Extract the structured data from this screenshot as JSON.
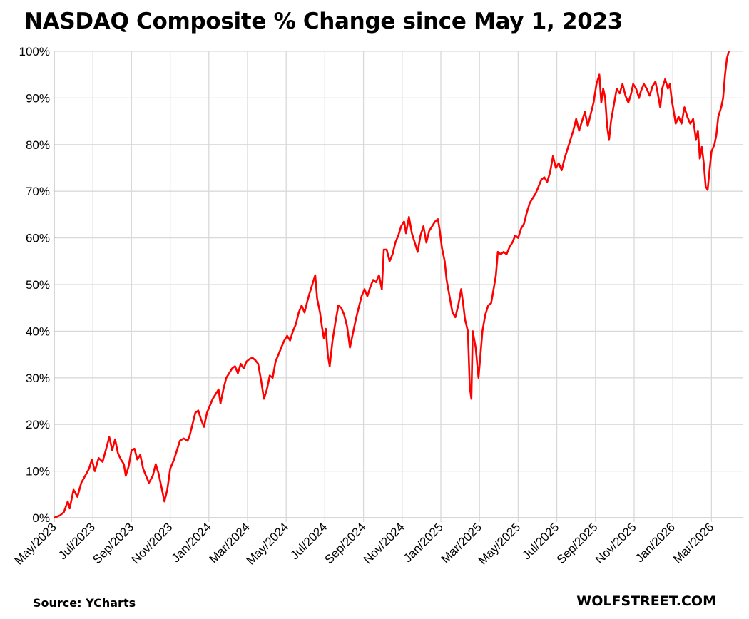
{
  "chart_data": {
    "type": "line",
    "title": "NASDAQ Composite % Change since May 1, 2023",
    "source": "Source: YCharts",
    "credit": "WOLFSTREET.COM",
    "ylim": [
      0,
      100
    ],
    "y_ticks": [
      "0%",
      "10%",
      "20%",
      "30%",
      "40%",
      "50%",
      "60%",
      "70%",
      "80%",
      "90%",
      "100%"
    ],
    "x_ticks": [
      "May/2023",
      "Jul/2023",
      "Sep/2023",
      "Nov/2023",
      "Jan/2024",
      "Mar/2024",
      "May/2024",
      "Jul/2024",
      "Sep/2024",
      "Nov/2024",
      "Jan/2025",
      "Mar/2025",
      "May/2025",
      "Jul/2025",
      "Sep/2025",
      "Nov/2025",
      "Jan/2026",
      "Mar/2026"
    ],
    "x_unit": "months since May 1, 2023",
    "xlim": [
      0,
      35.1
    ],
    "grid": true,
    "color": "#ff0000",
    "series": [
      {
        "values": [
          [
            0,
            0
          ],
          [
            0.3,
            0.5
          ],
          [
            0.5,
            1.2
          ],
          [
            0.7,
            3.5
          ],
          [
            0.8,
            2
          ],
          [
            1.0,
            6
          ],
          [
            1.2,
            4.5
          ],
          [
            1.4,
            7.5
          ],
          [
            1.6,
            9
          ],
          [
            1.8,
            10.5
          ],
          [
            1.95,
            12.5
          ],
          [
            2.1,
            10
          ],
          [
            2.3,
            12.8
          ],
          [
            2.5,
            12
          ],
          [
            2.7,
            15
          ],
          [
            2.85,
            17.3
          ],
          [
            3.0,
            14.5
          ],
          [
            3.15,
            16.8
          ],
          [
            3.3,
            13.8
          ],
          [
            3.45,
            12.5
          ],
          [
            3.6,
            11.5
          ],
          [
            3.7,
            9
          ],
          [
            3.85,
            11
          ],
          [
            4.0,
            14.5
          ],
          [
            4.15,
            14.8
          ],
          [
            4.3,
            12.5
          ],
          [
            4.45,
            13.5
          ],
          [
            4.6,
            10.5
          ],
          [
            4.75,
            9
          ],
          [
            4.9,
            7.5
          ],
          [
            5.1,
            9
          ],
          [
            5.25,
            11.5
          ],
          [
            5.4,
            9.5
          ],
          [
            5.55,
            6.5
          ],
          [
            5.7,
            3.5
          ],
          [
            5.85,
            6
          ],
          [
            6.0,
            10.5
          ],
          [
            6.2,
            12.5
          ],
          [
            6.35,
            14.5
          ],
          [
            6.5,
            16.5
          ],
          [
            6.7,
            17
          ],
          [
            6.9,
            16.5
          ],
          [
            7.0,
            17.5
          ],
          [
            7.15,
            20
          ],
          [
            7.3,
            22.5
          ],
          [
            7.45,
            23
          ],
          [
            7.6,
            21
          ],
          [
            7.75,
            19.5
          ],
          [
            7.9,
            22.5
          ],
          [
            8.05,
            24
          ],
          [
            8.2,
            25.5
          ],
          [
            8.35,
            26.5
          ],
          [
            8.5,
            27.5
          ],
          [
            8.6,
            24.5
          ],
          [
            8.75,
            27.5
          ],
          [
            8.9,
            30
          ],
          [
            9.05,
            31
          ],
          [
            9.2,
            32
          ],
          [
            9.35,
            32.5
          ],
          [
            9.5,
            31
          ],
          [
            9.65,
            33
          ],
          [
            9.8,
            32
          ],
          [
            9.95,
            33.5
          ],
          [
            10.1,
            34
          ],
          [
            10.25,
            34.3
          ],
          [
            10.4,
            33.8
          ],
          [
            10.55,
            33
          ],
          [
            10.7,
            29.5
          ],
          [
            10.85,
            25.5
          ],
          [
            11.0,
            27.5
          ],
          [
            11.15,
            30.5
          ],
          [
            11.3,
            30
          ],
          [
            11.45,
            33.5
          ],
          [
            11.6,
            35
          ],
          [
            11.75,
            36.5
          ],
          [
            11.9,
            38
          ],
          [
            12.05,
            39
          ],
          [
            12.2,
            38
          ],
          [
            12.35,
            40
          ],
          [
            12.5,
            41.5
          ],
          [
            12.65,
            44
          ],
          [
            12.8,
            45.5
          ],
          [
            12.95,
            44
          ],
          [
            13.1,
            46.5
          ],
          [
            13.2,
            48
          ],
          [
            13.35,
            50
          ],
          [
            13.5,
            52
          ],
          [
            13.6,
            47
          ],
          [
            13.75,
            44
          ],
          [
            13.85,
            41
          ],
          [
            13.95,
            38.5
          ],
          [
            14.05,
            40.5
          ],
          [
            14.15,
            35
          ],
          [
            14.25,
            32.5
          ],
          [
            14.4,
            38
          ],
          [
            14.55,
            42
          ],
          [
            14.7,
            45.5
          ],
          [
            14.85,
            45
          ],
          [
            15.0,
            43.5
          ],
          [
            15.15,
            41
          ],
          [
            15.3,
            36.5
          ],
          [
            15.45,
            39.5
          ],
          [
            15.6,
            42.5
          ],
          [
            15.75,
            45
          ],
          [
            15.9,
            47.5
          ],
          [
            16.05,
            49
          ],
          [
            16.2,
            47.5
          ],
          [
            16.35,
            49.5
          ],
          [
            16.5,
            51
          ],
          [
            16.65,
            50.5
          ],
          [
            16.8,
            52
          ],
          [
            16.95,
            49
          ],
          [
            17.05,
            57.5
          ],
          [
            17.2,
            57.5
          ],
          [
            17.35,
            55
          ],
          [
            17.5,
            56.5
          ],
          [
            17.65,
            59
          ],
          [
            17.8,
            60.5
          ],
          [
            17.95,
            62.5
          ],
          [
            18.1,
            63.5
          ],
          [
            18.2,
            61
          ],
          [
            18.35,
            64.5
          ],
          [
            18.5,
            61
          ],
          [
            18.65,
            59
          ],
          [
            18.8,
            57
          ],
          [
            18.95,
            60.5
          ],
          [
            19.1,
            62.5
          ],
          [
            19.25,
            59
          ],
          [
            19.4,
            61.5
          ],
          [
            19.55,
            62.5
          ],
          [
            19.7,
            63.5
          ],
          [
            19.85,
            64
          ],
          [
            19.95,
            61.5
          ],
          [
            20.05,
            58
          ],
          [
            20.2,
            55
          ],
          [
            20.3,
            51
          ],
          [
            20.45,
            47.5
          ],
          [
            20.6,
            44
          ],
          [
            20.75,
            43
          ],
          [
            20.9,
            45.5
          ],
          [
            21.05,
            49
          ],
          [
            21.15,
            46
          ],
          [
            21.25,
            42.5
          ],
          [
            21.4,
            40
          ],
          [
            21.5,
            28
          ],
          [
            21.58,
            25.5
          ],
          [
            21.65,
            40
          ],
          [
            21.8,
            36.5
          ],
          [
            21.95,
            30
          ],
          [
            22.05,
            35
          ],
          [
            22.15,
            40
          ],
          [
            22.3,
            43.5
          ],
          [
            22.45,
            45.5
          ],
          [
            22.6,
            46
          ],
          [
            22.75,
            49.5
          ],
          [
            22.85,
            52
          ],
          [
            22.95,
            57
          ],
          [
            23.1,
            56.5
          ],
          [
            23.25,
            57
          ],
          [
            23.4,
            56.5
          ],
          [
            23.55,
            58
          ],
          [
            23.7,
            59
          ],
          [
            23.85,
            60.5
          ],
          [
            24.0,
            60
          ],
          [
            24.15,
            62
          ],
          [
            24.3,
            63
          ],
          [
            24.45,
            65.5
          ],
          [
            24.6,
            67.5
          ],
          [
            24.75,
            68.5
          ],
          [
            24.9,
            69.5
          ],
          [
            25.05,
            71
          ],
          [
            25.2,
            72.5
          ],
          [
            25.35,
            73
          ],
          [
            25.5,
            72
          ],
          [
            25.65,
            74
          ],
          [
            25.8,
            77.5
          ],
          [
            25.95,
            75
          ],
          [
            26.1,
            76
          ],
          [
            26.25,
            74.5
          ],
          [
            26.4,
            77
          ],
          [
            26.55,
            79
          ],
          [
            26.7,
            81
          ],
          [
            26.85,
            83
          ],
          [
            27.0,
            85.5
          ],
          [
            27.15,
            83
          ],
          [
            27.3,
            85
          ],
          [
            27.45,
            87
          ],
          [
            27.6,
            84
          ],
          [
            27.75,
            86.5
          ],
          [
            27.9,
            89
          ],
          [
            28.05,
            93
          ],
          [
            28.2,
            95
          ],
          [
            28.3,
            89
          ],
          [
            28.4,
            92
          ],
          [
            28.5,
            90
          ],
          [
            28.6,
            84
          ],
          [
            28.7,
            81
          ],
          [
            28.8,
            85
          ],
          [
            28.95,
            88.5
          ],
          [
            29.1,
            92
          ],
          [
            29.25,
            91
          ],
          [
            29.4,
            93
          ],
          [
            29.55,
            90.5
          ],
          [
            29.7,
            89
          ],
          [
            29.85,
            91
          ],
          [
            29.95,
            93
          ],
          [
            30.1,
            92
          ],
          [
            30.25,
            90
          ],
          [
            30.35,
            91.5
          ],
          [
            30.5,
            93
          ],
          [
            30.65,
            92
          ],
          [
            30.8,
            90.5
          ],
          [
            30.95,
            92.5
          ],
          [
            31.1,
            93.5
          ],
          [
            31.2,
            91.5
          ],
          [
            31.35,
            88
          ],
          [
            31.45,
            92
          ],
          [
            31.6,
            94
          ],
          [
            31.75,
            92
          ],
          [
            31.85,
            93
          ],
          [
            31.95,
            89.5
          ],
          [
            32.05,
            87
          ],
          [
            32.15,
            84.5
          ],
          [
            32.3,
            86
          ],
          [
            32.45,
            84.5
          ],
          [
            32.6,
            88
          ],
          [
            32.75,
            86
          ],
          [
            32.9,
            84.5
          ],
          [
            33.05,
            85.5
          ],
          [
            33.2,
            81
          ],
          [
            33.3,
            83
          ],
          [
            33.4,
            77
          ],
          [
            33.5,
            79.5
          ],
          [
            33.6,
            76
          ],
          [
            33.7,
            71
          ],
          [
            33.8,
            70.3
          ],
          [
            33.9,
            74.5
          ],
          [
            34.0,
            78.5
          ],
          [
            34.15,
            80
          ],
          [
            34.25,
            82
          ],
          [
            34.35,
            86
          ],
          [
            34.5,
            88
          ],
          [
            34.6,
            90
          ],
          [
            34.7,
            95
          ],
          [
            34.8,
            98.5
          ],
          [
            34.9,
            100
          ]
        ]
      }
    ]
  }
}
